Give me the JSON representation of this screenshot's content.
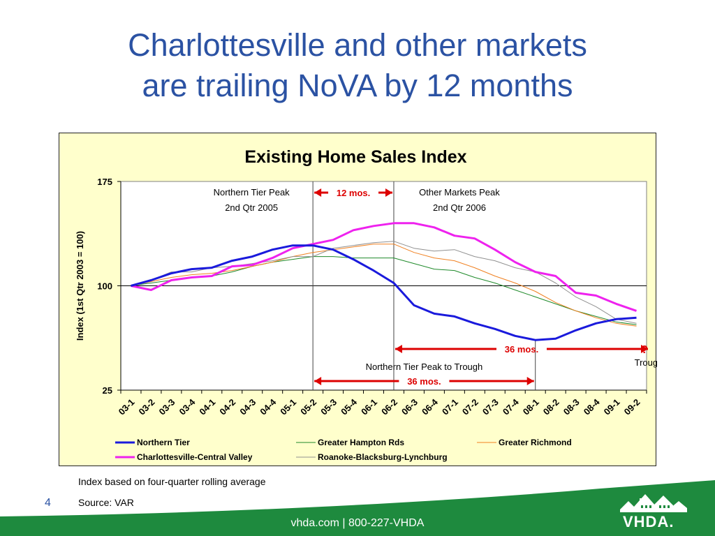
{
  "slide": {
    "title_line1": "Charlottesville and other markets",
    "title_line2": "are trailing NoVA by 12 months",
    "footnote1": "Index based on four-quarter rolling average",
    "footnote2": "Source:  VAR",
    "page_number": "4",
    "footer": "vhda.com | 800-227-VHDA",
    "logo_text": "VHDA.",
    "colors": {
      "title": "#2b52a3",
      "footer_green": "#1e8a3e",
      "chart_bg": "#ffffcc"
    }
  },
  "chart_data": {
    "type": "line",
    "title": "Existing Home Sales Index",
    "ylabel": "Index (1st Qtr 2003 = 100)",
    "ylim": [
      25,
      175
    ],
    "yticks": [
      25,
      100,
      175
    ],
    "grid": false,
    "legend_placement": "bottom",
    "categories": [
      "03-1",
      "03-2",
      "03-3",
      "03-4",
      "04-1",
      "04-2",
      "04-3",
      "04-4",
      "05-1",
      "05-2",
      "05-3",
      "05-4",
      "06-1",
      "06-2",
      "06-3",
      "06-4",
      "07-1",
      "07-2",
      "07-3",
      "07-4",
      "08-1",
      "08-2",
      "08-3",
      "08-4",
      "09-1",
      "09-2"
    ],
    "series": [
      {
        "name": "Northern Tier",
        "color": "#1a1adc",
        "width": 3,
        "values": [
          100,
          104,
          109,
          112,
          113,
          118,
          121,
          126,
          129,
          129,
          126,
          119,
          111,
          102,
          86,
          80,
          78,
          73,
          69,
          64,
          61,
          62,
          68,
          73,
          76,
          77
        ]
      },
      {
        "name": "Greater Hampton Rds",
        "color": "#1f8a2a",
        "width": 1,
        "values": [
          100,
          102,
          104,
          106,
          107,
          110,
          114,
          117,
          119,
          121,
          121,
          120,
          120,
          120,
          116,
          112,
          111,
          106,
          102,
          97,
          92,
          87,
          82,
          78,
          74,
          72
        ]
      },
      {
        "name": "Greater Richmond",
        "color": "#f08020",
        "width": 1,
        "values": [
          100,
          103,
          106,
          108,
          109,
          111,
          114,
          117,
          121,
          124,
          126,
          128,
          130,
          130,
          124,
          120,
          118,
          113,
          107,
          102,
          96,
          88,
          82,
          77,
          73,
          71
        ]
      },
      {
        "name": "Charlottesville-Central Valley",
        "color": "#ee22ee",
        "width": 3,
        "values": [
          100,
          97,
          104,
          106,
          107,
          114,
          115,
          120,
          127,
          130,
          133,
          140,
          143,
          145,
          145,
          142,
          136,
          134,
          126,
          117,
          110,
          107,
          95,
          93,
          87,
          82
        ]
      },
      {
        "name": "Roanoke-Blacksburg-Lynchburg",
        "color": "#909090",
        "width": 1,
        "values": [
          100,
          104,
          110,
          110,
          113,
          114,
          116,
          118,
          121,
          121,
          127,
          129,
          131,
          132,
          127,
          125,
          126,
          121,
          118,
          113,
          110,
          102,
          92,
          85,
          76,
          73
        ]
      }
    ],
    "annotations": {
      "nt_peak_line1": "Northern Tier Peak",
      "nt_peak_line2": "2nd Qtr 2005",
      "other_peak_line1": "Other Markets Peak",
      "other_peak_line2": "2nd Qtr 2006",
      "gap_12": "12 mos.",
      "gap_36_upper": "36 mos.",
      "question": "?",
      "trough": "Trough",
      "nt_peak_to_trough": "Northern Tier Peak to Trough",
      "gap_36_lower": "36 mos.",
      "arrow_color": "#dd0000",
      "nt_peak_category": "05-2",
      "other_peak_category": "06-2",
      "nt_trough_category": "08-1"
    }
  }
}
